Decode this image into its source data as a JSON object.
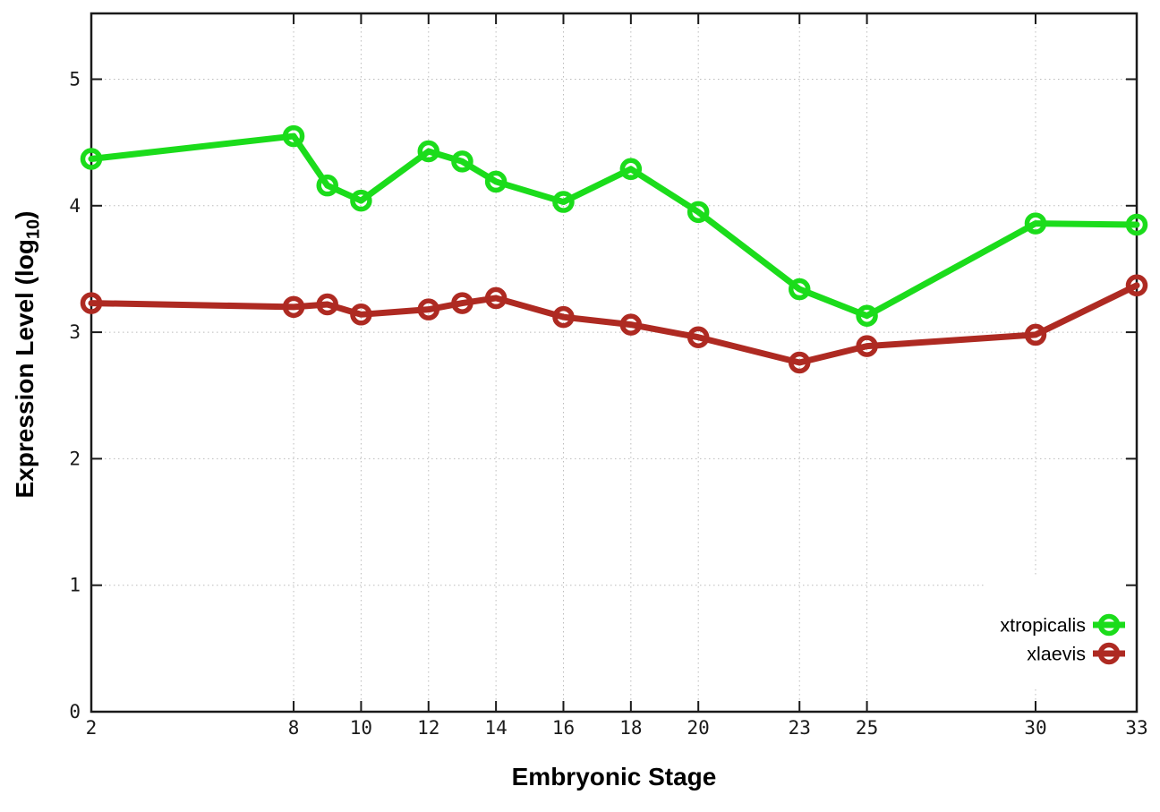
{
  "chart_data": {
    "type": "line",
    "title": "",
    "xlabel": "Embryonic Stage",
    "ylabel": "Expression Level (log10)",
    "ylabel_main": "Expression Level (log",
    "ylabel_sub": "10",
    "ylabel_end": ")",
    "x": [
      2,
      8,
      9,
      10,
      12,
      13,
      14,
      16,
      18,
      20,
      23,
      25,
      30,
      33
    ],
    "series": [
      {
        "name": "xtropicalis",
        "color": "#1bdc1b",
        "values": [
          4.37,
          4.55,
          4.16,
          4.04,
          4.43,
          4.35,
          4.19,
          4.03,
          4.29,
          3.95,
          3.34,
          3.13,
          3.86,
          3.85
        ]
      },
      {
        "name": "xlaevis",
        "color": "#ae2a22",
        "values": [
          3.23,
          3.2,
          3.22,
          3.14,
          3.18,
          3.23,
          3.27,
          3.12,
          3.06,
          2.96,
          2.76,
          2.89,
          2.98,
          3.37
        ]
      }
    ],
    "xtick_values": [
      2,
      8,
      10,
      12,
      14,
      16,
      18,
      20,
      23,
      25,
      30,
      33
    ],
    "xtick_labels": [
      "2",
      "8",
      "10",
      "12",
      "14",
      "16",
      "18",
      "20",
      "23",
      "25",
      "30",
      "33"
    ],
    "ytick_values": [
      0,
      1,
      2,
      3,
      4,
      5
    ],
    "ytick_labels": [
      "0",
      "1",
      "2",
      "3",
      "4",
      "5"
    ],
    "xlim": [
      2,
      33
    ],
    "ylim": [
      0,
      5.52
    ],
    "grid": true,
    "legend_position": "bottom-right",
    "marker": "open-circle",
    "colors": {
      "grid": "#bbbbbb",
      "axis": "#1a1a1a",
      "text": "#1a1a1a",
      "background": "#ffffff"
    }
  }
}
